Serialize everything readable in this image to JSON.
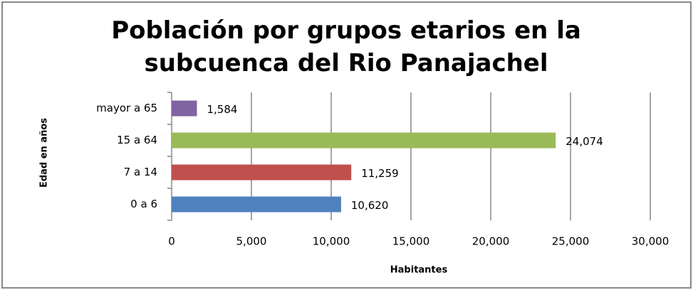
{
  "chart_data": {
    "type": "bar",
    "orientation": "horizontal",
    "title": "Población por grupos etarios en la subcuenca del Rio Panajachel",
    "xlabel": "Habitantes",
    "ylabel": "Edad en años",
    "categories": [
      "0 a 6",
      "7 a 14",
      "15 a 64",
      "mayor a 65"
    ],
    "values": [
      10620,
      11259,
      24074,
      1584
    ],
    "value_labels": [
      "10,620",
      "11,259",
      "24,074",
      "1,584"
    ],
    "colors": [
      "#4f81bd",
      "#c0504d",
      "#9bbb59",
      "#8064a2"
    ],
    "xlim": [
      0,
      30000
    ],
    "xticks": [
      0,
      {
        "value": 5000,
        "label": "5,000"
      },
      {
        "value": 10000,
        "label": "10,000"
      },
      {
        "value": 15000,
        "label": "15,000"
      },
      {
        "value": 20000,
        "label": "20,000"
      },
      {
        "value": 25000,
        "label": "25,000"
      },
      {
        "value": 30000,
        "label": "30,000"
      }
    ],
    "grid": true
  }
}
